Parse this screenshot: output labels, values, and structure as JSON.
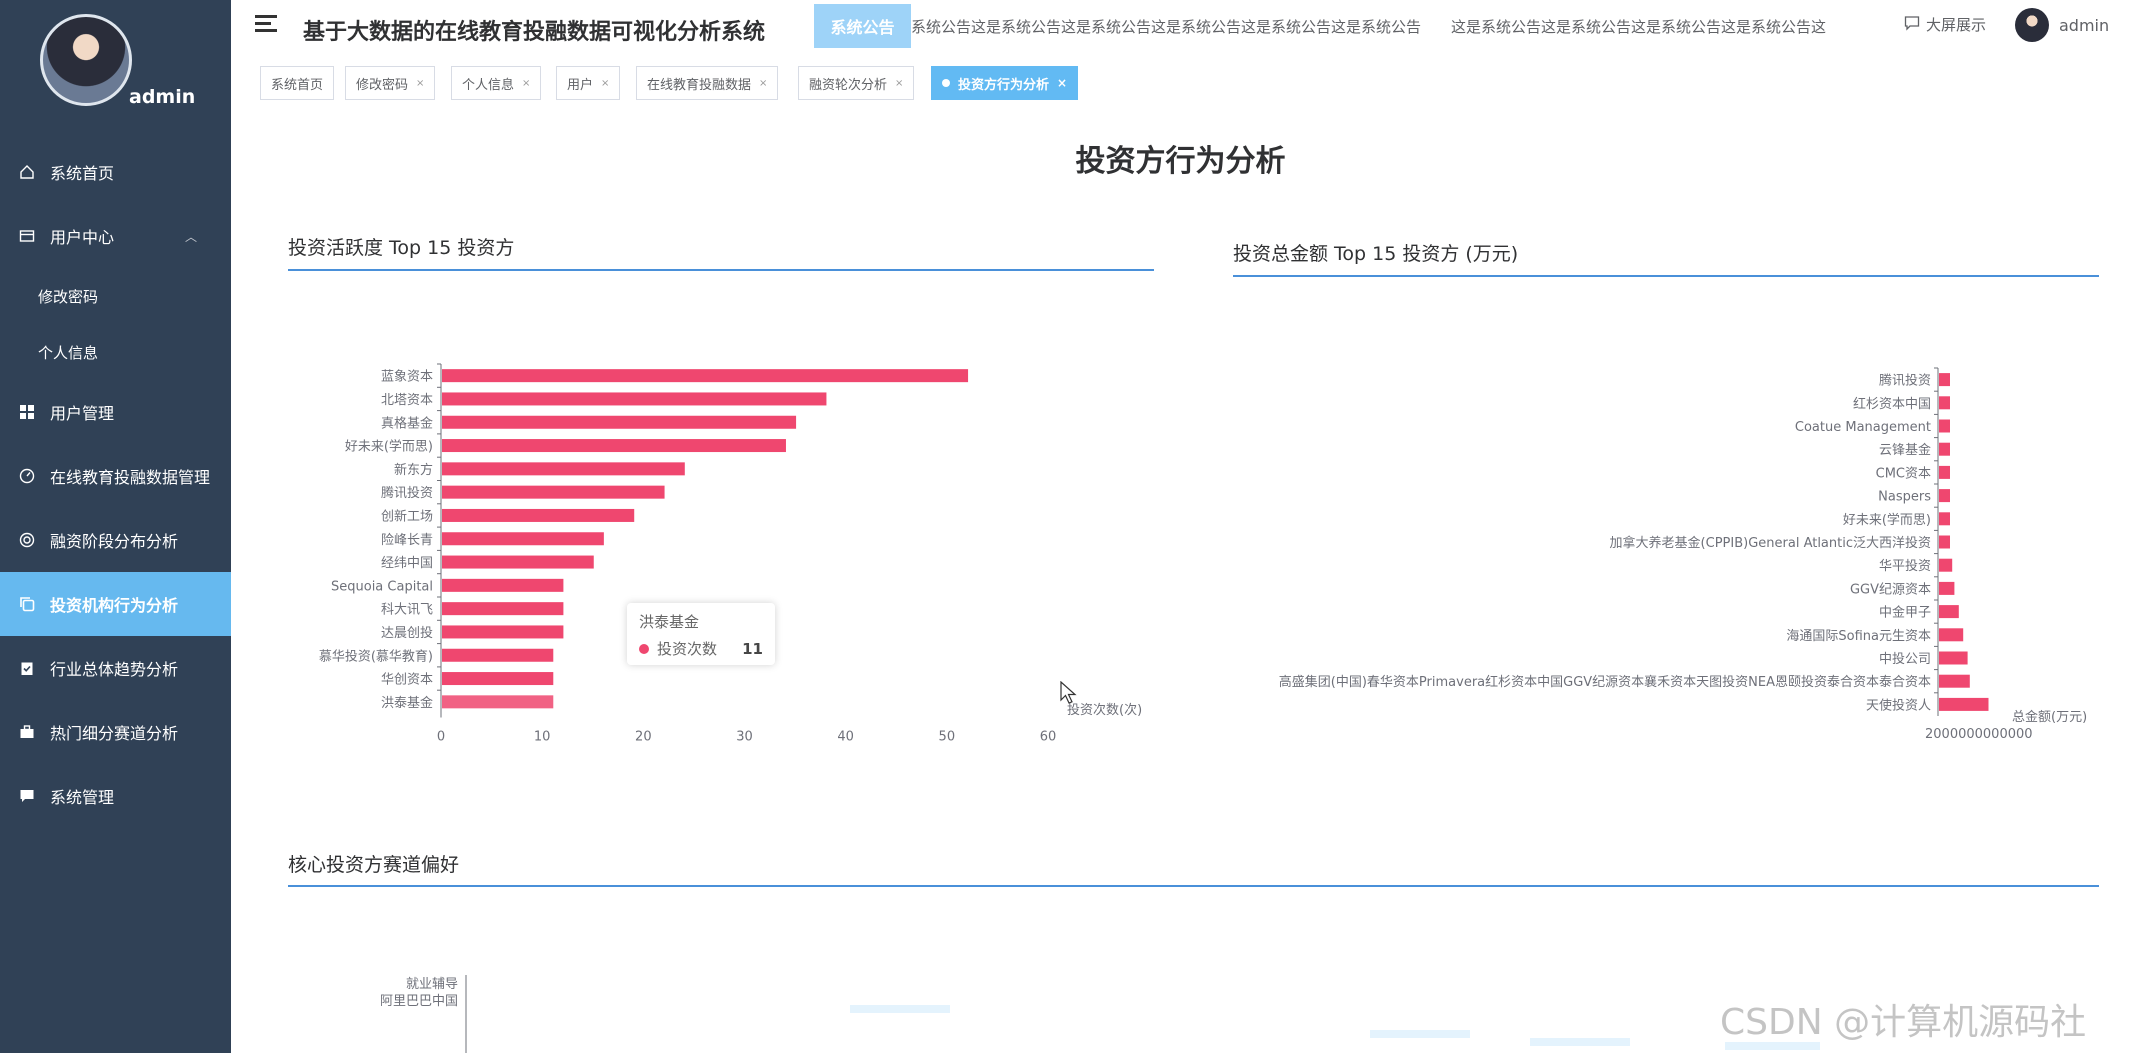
{
  "sidebar": {
    "username": "admin",
    "items": [
      {
        "label": "系统首页",
        "icon": "home-icon",
        "name": "sidebar-item-home"
      },
      {
        "label": "用户中心",
        "icon": "user-center-icon",
        "name": "sidebar-item-user-center"
      },
      {
        "label": "修改密码",
        "icon": "",
        "name": "sidebar-item-change-password"
      },
      {
        "label": "个人信息",
        "icon": "",
        "name": "sidebar-item-profile"
      },
      {
        "label": "用户管理",
        "icon": "grid-icon",
        "name": "sidebar-item-user-management"
      },
      {
        "label": "在线教育投融数据管理",
        "icon": "dashboard-icon",
        "name": "sidebar-item-data-management"
      },
      {
        "label": "融资阶段分布分析",
        "icon": "target-icon",
        "name": "sidebar-item-stage-analysis"
      },
      {
        "label": "投资机构行为分析",
        "icon": "copy-icon",
        "name": "sidebar-item-investor-analysis"
      },
      {
        "label": "行业总体趋势分析",
        "icon": "clipboard-icon",
        "name": "sidebar-item-trend-analysis"
      },
      {
        "label": "热门细分赛道分析",
        "icon": "briefcase-icon",
        "name": "sidebar-item-track-analysis"
      },
      {
        "label": "系统管理",
        "icon": "chat-icon",
        "name": "sidebar-item-system"
      }
    ]
  },
  "header": {
    "title": "基于大数据的在线教育投融数据可视化分析系统",
    "notice_badge": "系统公告",
    "notice_text_1": "系统公告这是系统公告这是系统公告这是系统公告这是系统公告这是系统公告",
    "notice_text_2": "这是系统公告这是系统公告这是系统公告这是系统公告这",
    "big_screen": "大屏展示",
    "user": "admin"
  },
  "tabs": [
    {
      "label": "系统首页",
      "closable": false
    },
    {
      "label": "修改密码",
      "closable": true
    },
    {
      "label": "个人信息",
      "closable": true
    },
    {
      "label": "用户",
      "closable": true
    },
    {
      "label": "在线教育投融数据",
      "closable": true
    },
    {
      "label": "融资轮次分析",
      "closable": true
    },
    {
      "label": "投资方行为分析",
      "closable": true,
      "active": true
    }
  ],
  "page": {
    "title": "投资方行为分析",
    "section1_title": "投资活跃度 Top 15 投资方",
    "section2_title": "投资总金额 Top 15 投资方 (万元)",
    "section3_title": "核心投资方赛道偏好"
  },
  "tooltip": {
    "title": "洪泰基金",
    "series": "投资次数",
    "value": "11"
  },
  "watermark": "CSDN @计算机源码社",
  "colors": {
    "sidebar": "#304156",
    "active": "#66b9ef",
    "bar": "#ef476f",
    "line": "#4a90d9"
  },
  "chart_data": [
    {
      "type": "bar",
      "orientation": "horizontal",
      "title": "投资活跃度 Top 15 投资方",
      "xlabel": "投资次数(次)",
      "xlim": [
        0,
        60
      ],
      "xticks": [
        0,
        10,
        20,
        30,
        40,
        50,
        60
      ],
      "categories": [
        "蓝象资本",
        "北塔资本",
        "真格基金",
        "好未来(学而思)",
        "新东方",
        "腾讯投资",
        "创新工场",
        "险峰长青",
        "经纬中国",
        "Sequoia Capital",
        "科大讯飞",
        "达晨创投",
        "慕华投资(慕华教育)",
        "华创资本",
        "洪泰基金"
      ],
      "values": [
        52,
        38,
        35,
        34,
        24,
        22,
        19,
        16,
        15,
        12,
        12,
        12,
        11,
        11,
        11
      ],
      "series": [
        {
          "name": "投资次数"
        }
      ]
    },
    {
      "type": "bar",
      "orientation": "horizontal",
      "title": "投资总金额 Top 15 投资方 (万元)",
      "xlabel": "总金额(万元)",
      "xtick_text": "2000000000000",
      "categories": [
        "腾讯投资",
        "红杉资本中国",
        "Coatue Management",
        "云锋基金",
        "CMC资本",
        "Naspers",
        "好未来(学而思)",
        "加拿大养老基金(CPPIB)General Atlantic泛大西洋投资",
        "华平投资",
        "GGV纪源资本",
        "中金甲子",
        "海通国际Sofina元生资本",
        "中投公司",
        "高盛集团(中国)春华资本Primavera红杉资本中国GGV纪源资本襄禾资本天图投资NEA恩颐投资泰合资本泰合资本",
        "天使投资人"
      ],
      "values": [
        1,
        1,
        1,
        1,
        1,
        1,
        1,
        1,
        1.2,
        1.4,
        1.8,
        2.2,
        2.6,
        2.8,
        4.5
      ]
    },
    {
      "type": "heatmap",
      "title": "核心投资方赛道偏好",
      "ylabels_visible": [
        "就业辅导",
        "阿里巴巴中国"
      ]
    }
  ]
}
